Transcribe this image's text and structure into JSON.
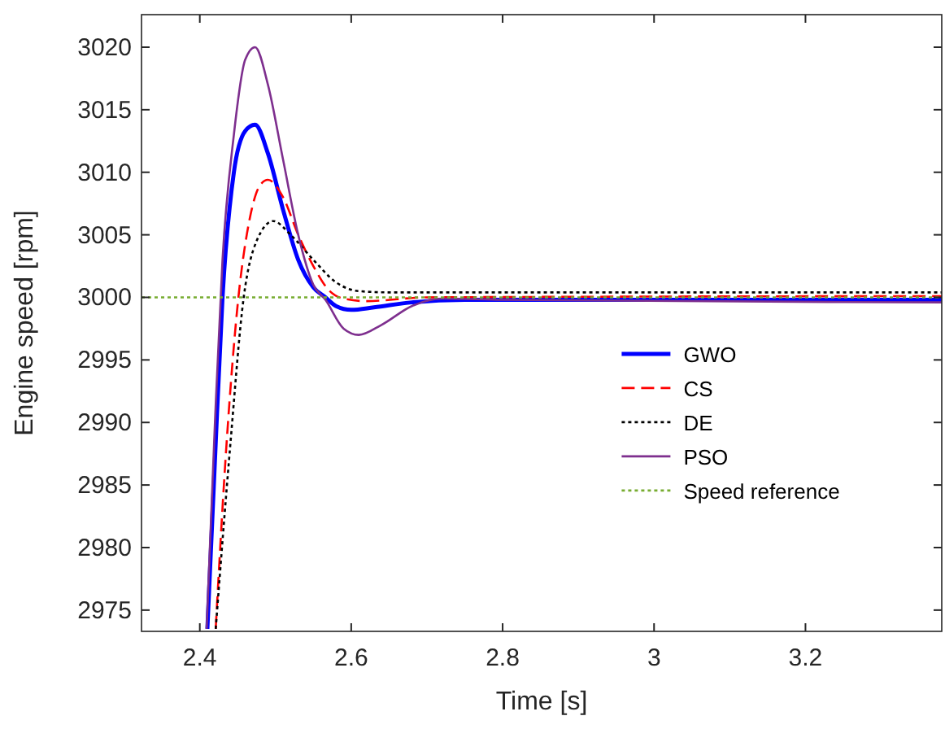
{
  "chart_data": {
    "type": "line",
    "xlabel": "Time [s]",
    "ylabel": "Engine speed [rpm]",
    "xlim": [
      2.323,
      3.38
    ],
    "ylim": [
      2973.3,
      3022.6
    ],
    "xticks": [
      2.4,
      2.6,
      2.8,
      3,
      3.2
    ],
    "yticks": [
      2975,
      2980,
      2985,
      2990,
      2995,
      3000,
      3005,
      3010,
      3015,
      3020
    ],
    "grid": false,
    "legend": "right",
    "marker": "none",
    "series": [
      {
        "name": "GWO",
        "color": "#0000ff",
        "line_style": "solid",
        "x": [
          2.41,
          2.42,
          2.43,
          2.445,
          2.46,
          2.473,
          2.49,
          2.51,
          2.53,
          2.55,
          2.566,
          2.58,
          2.6,
          2.63,
          2.68,
          2.75,
          3.38
        ],
        "values": [
          2973.5,
          2987,
          3000,
          3010,
          3013.3,
          3013.8,
          3011.5,
          3007,
          3003,
          3000.8,
          3000,
          2999.3,
          2999,
          2999.2,
          2999.6,
          2999.8,
          2999.8
        ]
      },
      {
        "name": "CS",
        "color": "#ff0000",
        "line_style": "dashed",
        "x": [
          2.421,
          2.435,
          2.451,
          2.465,
          2.48,
          2.49,
          2.51,
          2.53,
          2.55,
          2.57,
          2.59,
          2.62,
          2.7,
          3.38
        ],
        "values": [
          2973.5,
          2988,
          3000,
          3006,
          3009,
          3009.4,
          3008,
          3005,
          3002.5,
          3000.6,
          2999.9,
          2999.7,
          3000,
          3000.1
        ]
      },
      {
        "name": "DE",
        "color": "#000000",
        "line_style": "dotted",
        "x": [
          2.421,
          2.44,
          2.458,
          2.475,
          2.497,
          2.52,
          2.55,
          2.58,
          2.61,
          2.65,
          3.38
        ],
        "values": [
          2973.5,
          2988,
          3000,
          3004.5,
          3006.1,
          3005,
          3003,
          3001.2,
          3000.5,
          3000.4,
          3000.4
        ]
      },
      {
        "name": "PSO",
        "color": "#7e2f8e",
        "line_style": "solid",
        "x": [
          2.409,
          2.42,
          2.43,
          2.445,
          2.46,
          2.473,
          2.49,
          2.51,
          2.53,
          2.55,
          2.566,
          2.59,
          2.61,
          2.64,
          2.68,
          2.72,
          2.8,
          3.38
        ],
        "values": [
          2973.5,
          2990,
          3003,
          3013,
          3019,
          3020,
          3017,
          3011,
          3005,
          3001,
          2999.8,
          2997.5,
          2997,
          2997.8,
          2999.3,
          2999.9,
          2999.8,
          2999.6
        ]
      },
      {
        "name": "Speed reference",
        "color": "#77ac30",
        "line_style": "dotted",
        "x": [
          2.323,
          3.38
        ],
        "values": [
          3000,
          3000
        ]
      }
    ]
  }
}
